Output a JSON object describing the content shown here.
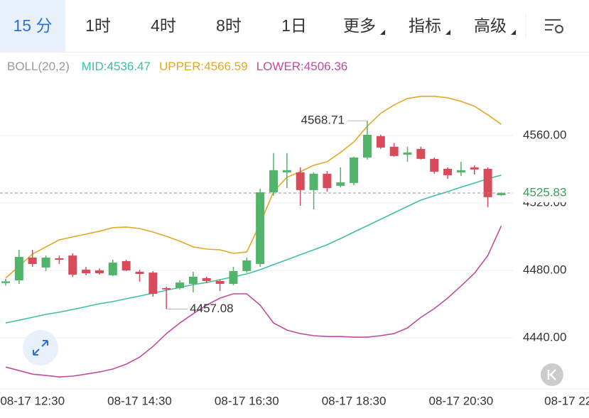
{
  "tabs": [
    "15 分",
    "1时",
    "4时",
    "8时",
    "1日",
    "更多",
    "指标",
    "高级"
  ],
  "chart_data": {
    "type": "candlestick",
    "title": "BOLL(20,2)",
    "categories": [
      null,
      null,
      "08-17 12:30",
      null,
      null,
      null,
      null,
      null,
      null,
      null,
      "08-17 14:30",
      null,
      null,
      null,
      null,
      null,
      null,
      null,
      "08-17 16:30",
      null,
      null,
      null,
      null,
      null,
      null,
      null,
      "08-17 18:30",
      null,
      null,
      null,
      null,
      null,
      null,
      null,
      "08-17 20:30",
      null,
      null,
      null,
      null,
      null,
      null,
      null,
      "08-17 22"
    ],
    "open": [
      4472.5,
      4474.1,
      4487.6,
      4481.7,
      4487.2,
      4488.8,
      4480.4,
      4480,
      4477.1,
      4485.5,
      4479.2,
      4478.7,
      4469.5,
      4469.5,
      4472,
      4475.4,
      4473.7,
      4472,
      4479.6,
      4483.8,
      4526.3,
      4538.1,
      4538.1,
      4527.6,
      4537.3,
      4530.1,
      4531.8,
      4546.9,
      4559.6,
      4553.3,
      4548.6,
      4552,
      4546.1,
      4540.2,
      4538.1,
      4541.1,
      4540.2,
      4524.6,
      null,
      null,
      null,
      null,
      null
    ],
    "high": [
      4475,
      4492.2,
      4492.2,
      4488.8,
      4488.8,
      4490.1,
      4482.1,
      4481.2,
      4486.3,
      4486.3,
      4480.4,
      4479.6,
      4470.3,
      4474.1,
      4479.2,
      4476.2,
      4474.5,
      4482.1,
      4487.6,
      4528.4,
      4549.5,
      4549.5,
      4541.1,
      4538.1,
      4538.9,
      4541.1,
      4547.4,
      4568.71,
      4560.4,
      4555.4,
      4553.3,
      4553.3,
      4546.9,
      4541.1,
      4544.4,
      4542.3,
      4541.1,
      4526.3,
      null,
      null,
      null,
      null,
      null
    ],
    "low": [
      4471,
      4472,
      4482.1,
      4479.6,
      4483.8,
      4476.2,
      4477.1,
      4477.5,
      4476.6,
      4479.6,
      4473.3,
      4464.4,
      4457.08,
      4468.7,
      4467,
      4472.5,
      4467.8,
      4471.2,
      4478.7,
      4482.1,
      4524.2,
      4528.8,
      4518.3,
      4516.2,
      4526.7,
      4529.2,
      4530.5,
      4545.7,
      4552,
      4547.4,
      4544.4,
      4545.7,
      4537.3,
      4534.3,
      4536,
      4536.8,
      4517.5,
      4524.2,
      null,
      null,
      null,
      null,
      null
    ],
    "close": [
      4473.5,
      4488,
      4483.8,
      4487.6,
      4486.3,
      4477.5,
      4478.3,
      4478.3,
      4484.6,
      4480,
      4477.9,
      4466.1,
      4468.7,
      4472.8,
      4476.2,
      4473.7,
      4472,
      4479.6,
      4485.9,
      4526.3,
      4539.4,
      4539.4,
      4527.6,
      4537.3,
      4528.8,
      4532.2,
      4546.9,
      4560.4,
      4552.8,
      4547.8,
      4549.9,
      4546.1,
      4538.5,
      4536.4,
      4539.4,
      4539.8,
      4523.4,
      4525.83,
      null,
      null,
      null,
      null,
      null
    ],
    "up_color": "#52b36b",
    "down_color": "#d94b5b",
    "lines": [
      {
        "name": "MID:",
        "color": "#3fbfa3",
        "values": [
          4448.8,
          4450.5,
          4452.2,
          4453.9,
          4455.2,
          4456.8,
          4458.5,
          4460.2,
          4461.5,
          4463.2,
          4464.8,
          4466.5,
          4468.2,
          4469.9,
          4471.6,
          4472.8,
          4474.5,
          4476.2,
          4477.9,
          4480.4,
          4483.4,
          4486.3,
          4489.3,
          4492.2,
          4495.2,
          4498.9,
          4502.7,
          4506.5,
          4510.3,
          4514.1,
          4517.9,
          4521.7,
          4524.2,
          4526.7,
          4529.3,
          4531.8,
          4534.3,
          4536.47,
          null,
          null,
          null,
          null,
          null
        ]
      },
      {
        "name": "UPPER:",
        "color": "#e3a82a",
        "values": [
          4475.4,
          4482.5,
          4489.7,
          4493.9,
          4498.1,
          4499.8,
          4501.5,
          4503.2,
          4505.3,
          4505.7,
          4504.8,
          4502.7,
          4500.2,
          4497.3,
          4493.9,
          4492.6,
          4492.2,
          4490.1,
          4490.9,
          4507.8,
          4526.7,
          4535.2,
          4538.5,
          4542.3,
          4544.4,
          4549.9,
          4556.2,
          4565.5,
          4573.1,
          4578.1,
          4581.9,
          4583.2,
          4583.2,
          4582.3,
          4580.2,
          4577.3,
          4572.2,
          4566.59,
          null,
          null,
          null,
          null,
          null
        ]
      },
      {
        "name": "LOWER:",
        "color": "#c04c9c",
        "values": [
          4422.7,
          4420.6,
          4418.5,
          4417.7,
          4416.8,
          4417.3,
          4418.5,
          4419.8,
          4421.5,
          4424.4,
          4428.6,
          4434.9,
          4442.5,
          4448.8,
          4454.3,
          4459.4,
          4463.6,
          4466.1,
          4466.1,
          4459.4,
          4448.8,
          4444.6,
          4442.5,
          4441.3,
          4440.8,
          4440.8,
          4440.4,
          4440.4,
          4441.3,
          4442.5,
          4445.9,
          4452.2,
          4457.3,
          4463.6,
          4470.7,
          4478.3,
          4488.8,
          4506.36,
          null,
          null,
          null,
          null,
          null
        ]
      }
    ],
    "ylim": [
      4411,
      4594
    ],
    "yticks": [
      {
        "value": 4440,
        "label": "4440.00"
      },
      {
        "value": 4480,
        "label": "4480.00"
      },
      {
        "value": 4520,
        "label": "4520.00"
      },
      {
        "value": 4560,
        "label": "4560.00"
      }
    ],
    "grid": true
  }
}
